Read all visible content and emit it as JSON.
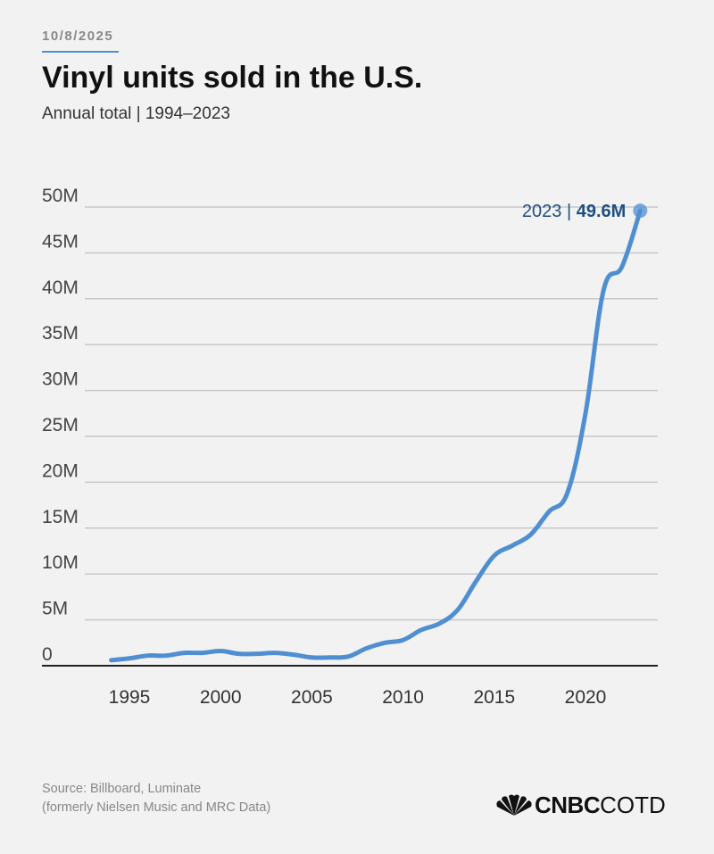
{
  "header": {
    "date": "10/8/2025",
    "title": "Vinyl units sold in the U.S.",
    "subtitle": "Annual total | 1994–2023"
  },
  "footer": {
    "source_line1": "Source: Billboard, Luminate",
    "source_line2": "(formerly Nielsen Music and MRC Data)",
    "logo_bold": "CNBC",
    "logo_light": "COTD",
    "logo_icon": "peacock-icon"
  },
  "colors": {
    "line": "#4f8fd1",
    "accent_rule": "#4f8fd1",
    "annotation_value": "#1f4f80"
  },
  "chart_data": {
    "type": "line",
    "title": "Vinyl units sold in the U.S.",
    "subtitle": "Annual total | 1994–2023",
    "xlabel": "",
    "ylabel": "",
    "ylim": [
      0,
      50
    ],
    "xlim": [
      1990,
      2024
    ],
    "unit": "M",
    "y_ticks": [
      0,
      5,
      10,
      15,
      20,
      25,
      30,
      35,
      40,
      45,
      50
    ],
    "y_tick_labels": [
      "0",
      "5M",
      "10M",
      "15M",
      "20M",
      "25M",
      "30M",
      "35M",
      "40M",
      "45M",
      "50M"
    ],
    "x_ticks": [
      1995,
      2000,
      2005,
      2010,
      2015,
      2020
    ],
    "x_tick_labels": [
      "1995",
      "2000",
      "2005",
      "2010",
      "2015",
      "2020"
    ],
    "grid": true,
    "series": [
      {
        "name": "Vinyl units sold",
        "x": [
          1994,
          1995,
          1996,
          1997,
          1998,
          1999,
          2000,
          2001,
          2002,
          2003,
          2004,
          2005,
          2006,
          2007,
          2008,
          2009,
          2010,
          2011,
          2012,
          2013,
          2014,
          2015,
          2016,
          2017,
          2018,
          2019,
          2020,
          2021,
          2022,
          2023
        ],
        "values": [
          0.6,
          0.8,
          1.1,
          1.1,
          1.4,
          1.4,
          1.6,
          1.3,
          1.3,
          1.4,
          1.2,
          0.9,
          0.9,
          1.0,
          1.9,
          2.5,
          2.8,
          3.9,
          4.6,
          6.1,
          9.2,
          12.0,
          13.1,
          14.3,
          16.8,
          18.8,
          27.5,
          41.0,
          43.5,
          49.6
        ]
      }
    ],
    "annotation": {
      "year_label": "2023",
      "separator": "|",
      "value_label": "49.6M"
    }
  }
}
